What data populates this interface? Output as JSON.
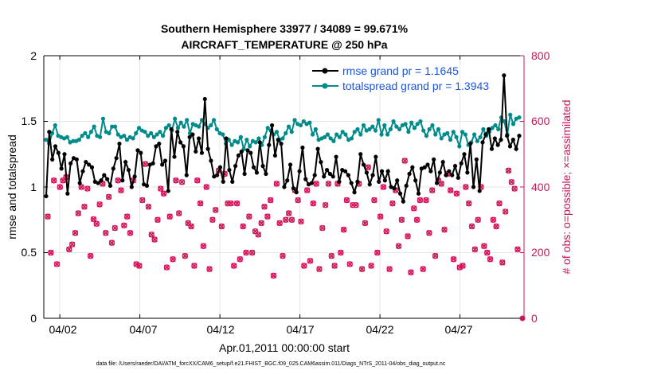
{
  "chart_data": {
    "type": "line",
    "title": "Southern Hemisphere 33977 / 34089 = 99.671%",
    "subtitle": "AIRCRAFT_TEMPERATURE @ 250 hPa",
    "xlabel": "Apr.01,2011 00:00:00 start",
    "ylabel": "rmse and totalspread",
    "y2label": "# of obs: o=possible; ×=assimilated",
    "footer": "data file: /Users/raeder/DAI/ATM_forcXX/CAM6_setup/f.e21.FHIST_BGC.f09_025.CAM6assim.011/Diags_NTrS_2011-04/obs_diag_output.nc",
    "x_ticks": [
      "04/02",
      "04/07",
      "04/12",
      "04/17",
      "04/22",
      "04/27"
    ],
    "x_tick_days": [
      2,
      7,
      12,
      17,
      22,
      27
    ],
    "x_range_days": [
      1.0,
      31.0
    ],
    "ylim": [
      0,
      2
    ],
    "y_ticks": [
      "0",
      "0.5",
      "1",
      "1.5",
      "2"
    ],
    "y2lim": [
      0,
      800
    ],
    "y2_ticks": [
      "0",
      "200",
      "400",
      "600",
      "800"
    ],
    "grid": true,
    "legend_position": "top-right",
    "colors": {
      "rmse": "#000000",
      "spread": "#008b8b",
      "obs": "#d4145a"
    },
    "series": [
      {
        "name": "rmse grand pr = 1.1645",
        "axis": "left",
        "values": [
          0.93,
          1.42,
          1.21,
          1.31,
          1.26,
          1.14,
          1.25,
          0.95,
          1.18,
          1.22,
          1.21,
          1.03,
          1.12,
          1.19,
          1.17,
          1.15,
          1.04,
          1.03,
          1.05,
          1.09,
          1.06,
          1.01,
          1.14,
          1.22,
          1.33,
          1.05,
          1.19,
          1.13,
          1.0,
          1.08,
          1.28,
          1.26,
          1.02,
          1.01,
          1.17,
          1.18,
          1.31,
          1.33,
          1.17,
          1.2,
          0.97,
          1.44,
          1.23,
          1.42,
          1.34,
          1.31,
          1.09,
          1.38,
          1.4,
          1.27,
          1.37,
          1.26,
          1.67,
          1.29,
          1.2,
          1.08,
          1.09,
          1.15,
          1.04,
          1.37,
          1.13,
          1.04,
          1.16,
          1.24,
          1.27,
          1.1,
          1.28,
          1.26,
          1.15,
          1.11,
          1.34,
          1.16,
          1.1,
          1.32,
          1.47,
          1.24,
          1.36,
          1.33,
          1.0,
          1.05,
          1.17,
          0.99,
          0.96,
          1.12,
          1.3,
          1.06,
          1.02,
          1.03,
          1.09,
          1.29,
          1.19,
          1.08,
          1.13,
          1.1,
          1.08,
          1.23,
          1.04,
          1.13,
          1.12,
          1.09,
          1.03,
          0.96,
          1.04,
          1.25,
          1.17,
          1.11,
          1.02,
          1.09,
          1.23,
          1.04,
          1.12,
          1.05,
          1.12,
          1.0,
          0.99,
          1.05,
          0.95,
          0.89,
          1.01,
          1.1,
          1.15,
          1.05,
          0.95,
          1.14,
          1.15,
          1.17,
          1.12,
          1.21,
          1.03,
          1.11,
          1.19,
          1.09,
          1.12,
          1.09,
          1.16,
          1.07,
          1.18,
          1.25,
          1.11,
          1.33,
          1.0,
          1.21,
          0.97,
          1.34,
          1.4,
          1.44,
          1.29,
          1.37,
          1.32,
          1.36,
          1.85,
          1.39,
          1.31,
          1.36,
          1.29,
          1.39
        ]
      },
      {
        "name": "totalspread grand pr = 1.3943",
        "axis": "left",
        "values": [
          1.36,
          1.33,
          1.41,
          1.47,
          1.39,
          1.38,
          1.37,
          1.38,
          1.34,
          1.35,
          1.35,
          1.36,
          1.39,
          1.41,
          1.38,
          1.42,
          1.46,
          1.39,
          1.38,
          1.52,
          1.42,
          1.41,
          1.46,
          1.46,
          1.4,
          1.38,
          1.39,
          1.36,
          1.38,
          1.37,
          1.41,
          1.45,
          1.43,
          1.42,
          1.39,
          1.41,
          1.38,
          1.4,
          1.42,
          1.39,
          1.45,
          1.47,
          1.43,
          1.52,
          1.45,
          1.49,
          1.46,
          1.51,
          1.41,
          1.48,
          1.47,
          1.46,
          1.51,
          1.48,
          1.45,
          1.47,
          1.51,
          1.44,
          1.41,
          1.4,
          1.33,
          1.36,
          1.32,
          1.35,
          1.34,
          1.38,
          1.29,
          1.36,
          1.31,
          1.35,
          1.34,
          1.37,
          1.32,
          1.38,
          1.45,
          1.43,
          1.4,
          1.42,
          1.36,
          1.37,
          1.41,
          1.46,
          1.42,
          1.51,
          1.48,
          1.47,
          1.5,
          1.48,
          1.49,
          1.4,
          1.44,
          1.36,
          1.37,
          1.38,
          1.4,
          1.37,
          1.35,
          1.4,
          1.38,
          1.42,
          1.4,
          1.36,
          1.37,
          1.42,
          1.44,
          1.4,
          1.47,
          1.43,
          1.44,
          1.46,
          1.43,
          1.51,
          1.4,
          1.47,
          1.4,
          1.44,
          1.5,
          1.46,
          1.44,
          1.47,
          1.48,
          1.42,
          1.49,
          1.45,
          1.48,
          1.5,
          1.43,
          1.39,
          1.44,
          1.47,
          1.4,
          1.44,
          1.37,
          1.4,
          1.41,
          1.36,
          1.42,
          1.38,
          1.31,
          1.42,
          1.4,
          1.32,
          1.34,
          1.4,
          1.35,
          1.38,
          1.44,
          1.39,
          1.42,
          1.45,
          1.47,
          1.44,
          1.53,
          1.5,
          1.4,
          1.55,
          1.48,
          1.52,
          1.53
        ]
      },
      {
        "name": "observations",
        "axis": "right",
        "values": [
          310,
          200,
          420,
          165,
          400,
          420,
          430,
          210,
          225,
          260,
          320,
          400,
          340,
          395,
          190,
          302,
          288,
          347,
          410,
          260,
          370,
          230,
          275,
          420,
          390,
          283,
          310,
          260,
          420,
          165,
          160,
          360,
          470,
          340,
          255,
          240,
          300,
          395,
          380,
          155,
          310,
          180,
          420,
          320,
          415,
          190,
          290,
          280,
          160,
          420,
          350,
          220,
          400,
          150,
          300,
          330,
          450,
          280,
          440,
          350,
          350,
          160,
          350,
          180,
          280,
          200,
          310,
          200,
          265,
          255,
          290,
          340,
          310,
          360,
          130,
          410,
          290,
          190,
          300,
          320,
          300,
          390,
          360,
          295,
          160,
          390,
          175,
          350,
          410,
          150,
          275,
          345,
          410,
          190,
          160,
          410,
          200,
          270,
          360,
          165,
          345,
          345,
          410,
          150,
          290,
          460,
          160,
          360,
          200,
          310,
          400,
          265,
          150,
          350,
          390,
          220,
          300,
          480,
          250,
          140,
          335,
          300,
          360,
          150,
          360,
          260,
          390,
          190,
          420,
          410,
          270,
          440,
          390,
          180,
          380,
          155,
          160,
          400,
          350,
          280,
          210,
          300,
          400,
          220,
          200,
          180,
          300,
          280,
          350,
          170,
          325,
          450,
          415,
          395,
          210
        ]
      }
    ]
  }
}
